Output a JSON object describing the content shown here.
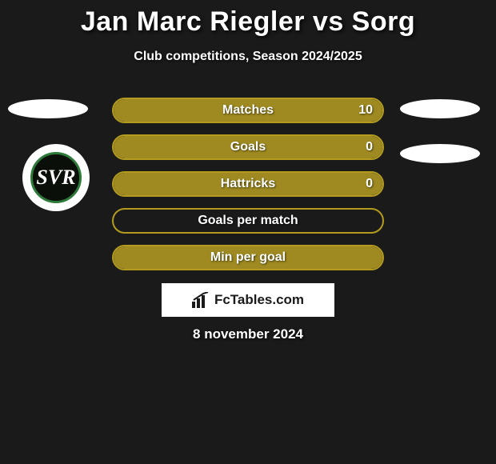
{
  "title": "Jan Marc Riegler vs Sorg",
  "subtitle": "Club competitions, Season 2024/2025",
  "date_text": "8 november 2024",
  "watermark": {
    "text": "FcTables.com"
  },
  "badge": {
    "monogram": "SVR",
    "ring_color": "#2e7a3a",
    "inner_bg": "#0a0f0a"
  },
  "colors": {
    "background": "#1a1a1a",
    "bar_border": "#b39b1f",
    "bar_fill": "#9e8a21",
    "text": "#ffffff"
  },
  "bars": [
    {
      "label": "Matches",
      "value": "10",
      "fill_pct": 100
    },
    {
      "label": "Goals",
      "value": "0",
      "fill_pct": 100
    },
    {
      "label": "Hattricks",
      "value": "0",
      "fill_pct": 100
    },
    {
      "label": "Goals per match",
      "value": "",
      "fill_pct": 0
    },
    {
      "label": "Min per goal",
      "value": "",
      "fill_pct": 100
    }
  ]
}
